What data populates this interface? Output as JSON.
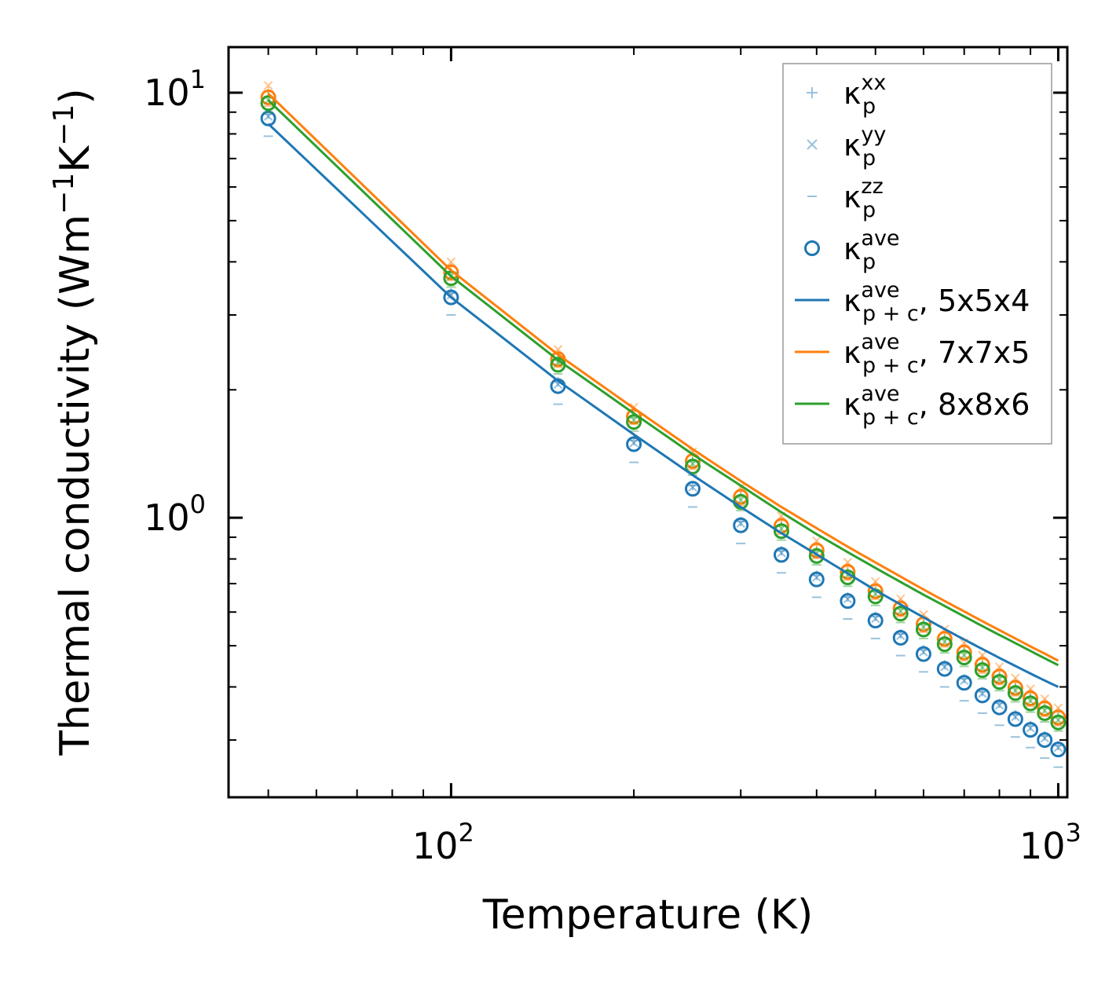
{
  "chart_data": {
    "type": "scatter",
    "title": "",
    "xlabel": "Temperature (K)",
    "ylabel_main": "Thermal conductivity (Wm",
    "ylabel_exp1": "−1",
    "ylabel_mid": "K",
    "ylabel_exp2": "−1",
    "ylabel_end": ")",
    "xscale": "log",
    "yscale": "log",
    "xlim": [
      43,
      1035
    ],
    "ylim": [
      0.22,
      12.8
    ],
    "x_ticks": [
      {
        "value": 100,
        "base": "10",
        "exp": "2"
      },
      {
        "value": 1000,
        "base": "10",
        "exp": "3"
      }
    ],
    "y_ticks": [
      {
        "value": 1,
        "base": "10",
        "exp": "0"
      },
      {
        "value": 10,
        "base": "10",
        "exp": "1"
      }
    ],
    "legend_position": "top-right",
    "temperatures": [
      50,
      100,
      150,
      200,
      250,
      300,
      350,
      400,
      450,
      500,
      550,
      600,
      650,
      700,
      750,
      800,
      850,
      900,
      950,
      1000
    ],
    "series": [
      {
        "name": "5x5x4",
        "color": "#1f77b4",
        "kappa_p_ave": [
          8.7,
          3.3,
          2.04,
          1.49,
          1.17,
          0.96,
          0.818,
          0.716,
          0.637,
          0.573,
          0.522,
          0.478,
          0.441,
          0.409,
          0.382,
          0.358,
          0.336,
          0.317,
          0.3,
          0.285
        ],
        "kappa_p_xx": [
          8.9,
          3.38,
          2.09,
          1.52,
          1.19,
          0.98,
          0.836,
          0.732,
          0.651,
          0.586,
          0.533,
          0.489,
          0.451,
          0.418,
          0.39,
          0.366,
          0.344,
          0.324,
          0.307,
          0.291
        ],
        "kappa_p_yy": [
          8.8,
          3.34,
          2.06,
          1.5,
          1.18,
          0.97,
          0.827,
          0.724,
          0.644,
          0.579,
          0.528,
          0.483,
          0.446,
          0.414,
          0.386,
          0.362,
          0.34,
          0.32,
          0.303,
          0.288
        ],
        "kappa_p_zz": [
          7.9,
          3.0,
          1.85,
          1.35,
          1.06,
          0.87,
          0.742,
          0.65,
          0.578,
          0.52,
          0.474,
          0.434,
          0.4,
          0.371,
          0.347,
          0.325,
          0.305,
          0.288,
          0.272,
          0.259
        ],
        "kappa_pc_ave_curve": [
          8.45,
          3.3,
          2.1,
          1.57,
          1.26,
          1.06,
          0.92,
          0.82,
          0.74,
          0.675,
          0.625,
          0.583,
          0.547,
          0.517,
          0.491,
          0.468,
          0.448,
          0.43,
          0.414,
          0.4
        ]
      },
      {
        "name": "7x7x5",
        "color": "#ff7f0e",
        "kappa_p_ave": [
          9.75,
          3.78,
          2.36,
          1.73,
          1.36,
          1.12,
          0.957,
          0.838,
          0.746,
          0.672,
          0.612,
          0.562,
          0.519,
          0.482,
          0.451,
          0.423,
          0.398,
          0.376,
          0.356,
          0.339
        ],
        "kappa_p_xx": [
          10.1,
          3.9,
          2.43,
          1.78,
          1.4,
          1.155,
          0.985,
          0.863,
          0.768,
          0.692,
          0.63,
          0.579,
          0.535,
          0.497,
          0.465,
          0.436,
          0.41,
          0.387,
          0.367,
          0.349
        ],
        "kappa_p_yy": [
          10.4,
          4.0,
          2.49,
          1.82,
          1.43,
          1.18,
          1.01,
          0.883,
          0.786,
          0.708,
          0.645,
          0.592,
          0.547,
          0.508,
          0.475,
          0.446,
          0.42,
          0.396,
          0.375,
          0.357
        ],
        "kappa_p_zz": [
          9.3,
          3.62,
          2.26,
          1.66,
          1.3,
          1.07,
          0.915,
          0.802,
          0.713,
          0.643,
          0.586,
          0.538,
          0.497,
          0.461,
          0.431,
          0.405,
          0.381,
          0.36,
          0.341,
          0.324
        ],
        "kappa_pc_ave_curve": [
          9.95,
          3.82,
          2.42,
          1.81,
          1.45,
          1.22,
          1.06,
          0.945,
          0.855,
          0.785,
          0.727,
          0.678,
          0.637,
          0.602,
          0.571,
          0.544,
          0.52,
          0.498,
          0.479,
          0.461
        ]
      },
      {
        "name": "8x8x6",
        "color": "#2ca02c",
        "kappa_p_ave": [
          9.45,
          3.66,
          2.29,
          1.68,
          1.32,
          1.09,
          0.93,
          0.813,
          0.724,
          0.653,
          0.595,
          0.546,
          0.504,
          0.469,
          0.438,
          0.411,
          0.387,
          0.366,
          0.347,
          0.33
        ],
        "kappa_p_xx": [
          9.8,
          3.76,
          2.35,
          1.72,
          1.355,
          1.12,
          0.955,
          0.835,
          0.744,
          0.671,
          0.611,
          0.561,
          0.518,
          0.482,
          0.45,
          0.422,
          0.398,
          0.376,
          0.356,
          0.339
        ],
        "kappa_p_yy": [
          9.6,
          3.7,
          2.32,
          1.7,
          1.34,
          1.1,
          0.942,
          0.824,
          0.734,
          0.662,
          0.603,
          0.553,
          0.511,
          0.475,
          0.444,
          0.417,
          0.392,
          0.371,
          0.352,
          0.334
        ],
        "kappa_p_zz": [
          9.0,
          3.49,
          2.18,
          1.6,
          1.26,
          1.04,
          0.886,
          0.775,
          0.69,
          0.622,
          0.567,
          0.52,
          0.481,
          0.447,
          0.418,
          0.392,
          0.369,
          0.349,
          0.331,
          0.315
        ],
        "kappa_pc_ave_curve": [
          9.6,
          3.7,
          2.35,
          1.76,
          1.41,
          1.19,
          1.03,
          0.915,
          0.83,
          0.762,
          0.706,
          0.659,
          0.62,
          0.586,
          0.556,
          0.53,
          0.507,
          0.486,
          0.467,
          0.45
        ]
      }
    ],
    "legend": [
      {
        "kind": "plus",
        "base": "κ",
        "sub": "p",
        "sup": "xx",
        "suffix": ""
      },
      {
        "kind": "cross",
        "base": "κ",
        "sub": "p",
        "sup": "yy",
        "suffix": ""
      },
      {
        "kind": "dash",
        "base": "κ",
        "sub": "p",
        "sup": "zz",
        "suffix": ""
      },
      {
        "kind": "circle",
        "base": "κ",
        "sub": "p",
        "sup": "ave",
        "suffix": ""
      },
      {
        "kind": "line",
        "series": 0,
        "base": "κ",
        "sub": "p + c",
        "sup": "ave",
        "suffix": ", 5x5x4"
      },
      {
        "kind": "line",
        "series": 1,
        "base": "κ",
        "sub": "p + c",
        "sup": "ave",
        "suffix": ", 7x7x5"
      },
      {
        "kind": "line",
        "series": 2,
        "base": "κ",
        "sub": "p + c",
        "sup": "ave",
        "suffix": ", 8x8x6"
      }
    ]
  }
}
